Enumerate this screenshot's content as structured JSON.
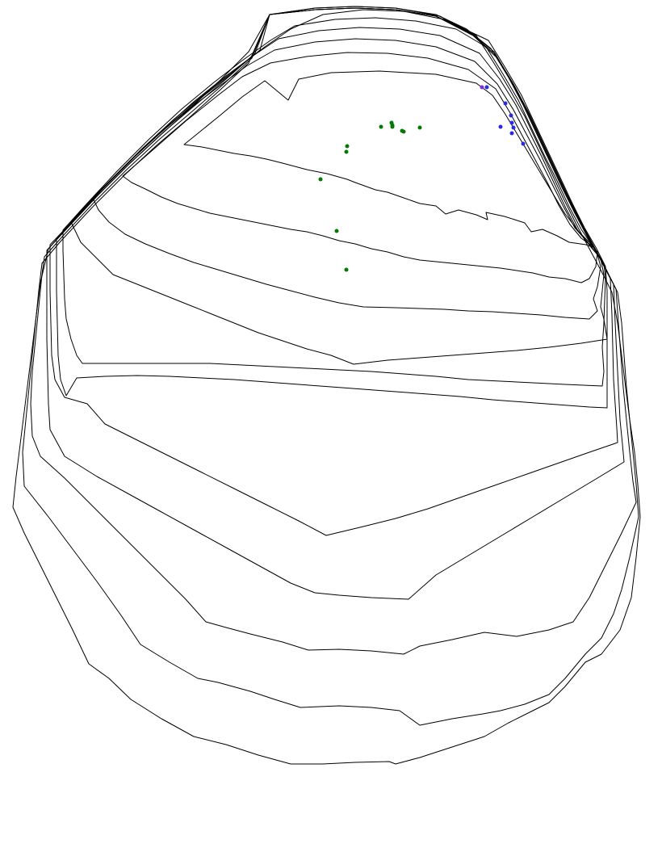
{
  "diagram": {
    "kind": "nested contour outlines with scattered points",
    "contour_count": 11,
    "colors": {
      "background": "#ffffff",
      "contour_stroke": "#000000",
      "green_points": "#007a00",
      "blue_points": "#2a2ae0",
      "purple_points": "#8a2ad0"
    },
    "point_groups": [
      {
        "name": "green-points",
        "count": 12
      },
      {
        "name": "blue-points",
        "count": 8
      },
      {
        "name": "purple-points",
        "count": 1
      }
    ]
  }
}
